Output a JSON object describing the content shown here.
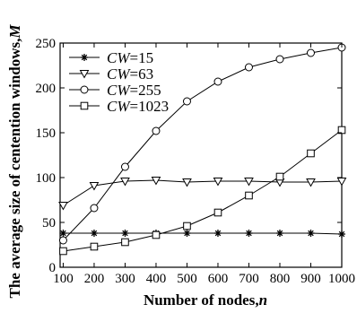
{
  "chart_data": {
    "type": "line",
    "title": "",
    "xlabel": "Number of nodes,",
    "xlabel_var": "n",
    "ylabel": "The average size of centention windows,",
    "ylabel_var": "M",
    "xlim": [
      90,
      1000
    ],
    "ylim": [
      0,
      250
    ],
    "x_ticks": [
      100,
      200,
      300,
      400,
      500,
      600,
      700,
      800,
      900,
      1000
    ],
    "y_ticks": [
      0,
      50,
      100,
      150,
      200,
      250
    ],
    "grid": false,
    "legend_position": "top-left",
    "x": [
      100,
      200,
      300,
      400,
      500,
      600,
      700,
      800,
      900,
      1000
    ],
    "series": [
      {
        "name": "CW=15",
        "name_var": "CW",
        "name_val": "=15",
        "marker": "star",
        "values": [
          38,
          38,
          38,
          38,
          38,
          38,
          38,
          38,
          38,
          37
        ]
      },
      {
        "name": "CW=63",
        "name_var": "CW",
        "name_val": "=63",
        "marker": "triangle-down",
        "values": [
          69,
          91,
          96,
          97,
          95,
          96,
          96,
          95,
          95,
          96
        ]
      },
      {
        "name": "CW=255",
        "name_var": "CW",
        "name_val": "=255",
        "marker": "circle",
        "values": [
          30,
          66,
          112,
          152,
          185,
          207,
          223,
          232,
          239,
          245
        ]
      },
      {
        "name": "CW=1023",
        "name_var": "CW",
        "name_val": "=1023",
        "marker": "square",
        "values": [
          18,
          23,
          28,
          36,
          46,
          61,
          80,
          101,
          127,
          153
        ]
      }
    ]
  }
}
